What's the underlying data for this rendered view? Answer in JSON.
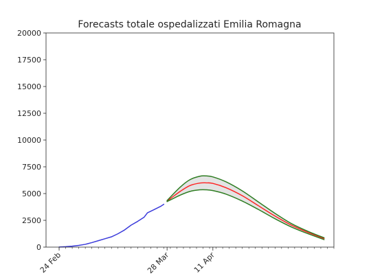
{
  "chart_data": {
    "type": "line",
    "title": "Forecasts totale ospedalizzati Emilia Romagna",
    "xlabel": "",
    "ylabel": "",
    "x_start": "2020-02-20",
    "x_end": "2020-05-18",
    "ylim": [
      0,
      20000
    ],
    "yticks": [
      0,
      2500,
      5000,
      7500,
      10000,
      12500,
      15000,
      17500,
      20000
    ],
    "xticks": [
      {
        "date": "2020-02-24",
        "label": "24 Feb"
      },
      {
        "date": "2020-03-28",
        "label": "28 Mar"
      },
      {
        "date": "2020-04-11",
        "label": "11 Apr"
      }
    ],
    "minor_tick_days": 2,
    "grid": false,
    "series": [
      {
        "role": "observed",
        "color": "#3b3bdb",
        "points": [
          [
            "2020-02-24",
            10
          ],
          [
            "2020-02-26",
            40
          ],
          [
            "2020-02-28",
            90
          ],
          [
            "2020-03-01",
            160
          ],
          [
            "2020-03-03",
            260
          ],
          [
            "2020-03-05",
            420
          ],
          [
            "2020-03-07",
            600
          ],
          [
            "2020-03-09",
            780
          ],
          [
            "2020-03-11",
            960
          ],
          [
            "2020-03-13",
            1250
          ],
          [
            "2020-03-15",
            1600
          ],
          [
            "2020-03-17",
            2050
          ],
          [
            "2020-03-19",
            2400
          ],
          [
            "2020-03-21",
            2800
          ],
          [
            "2020-03-22",
            3200
          ],
          [
            "2020-03-24",
            3500
          ],
          [
            "2020-03-26",
            3800
          ],
          [
            "2020-03-27",
            4000
          ]
        ]
      },
      {
        "role": "forecast",
        "color": "#ff2020",
        "points": [
          [
            "2020-03-28",
            4300
          ],
          [
            "2020-04-01",
            5200
          ],
          [
            "2020-04-04",
            5750
          ],
          [
            "2020-04-07",
            5980
          ],
          [
            "2020-04-09",
            6000
          ],
          [
            "2020-04-11",
            5950
          ],
          [
            "2020-04-15",
            5550
          ],
          [
            "2020-04-20",
            4800
          ],
          [
            "2020-04-25",
            3850
          ],
          [
            "2020-04-30",
            2900
          ],
          [
            "2020-05-05",
            2050
          ],
          [
            "2020-05-10",
            1380
          ],
          [
            "2020-05-15",
            800
          ]
        ]
      },
      {
        "role": "forecast-upper",
        "color": "#2e7d22",
        "points": [
          [
            "2020-03-28",
            4350
          ],
          [
            "2020-04-01",
            5600
          ],
          [
            "2020-04-04",
            6300
          ],
          [
            "2020-04-07",
            6620
          ],
          [
            "2020-04-09",
            6650
          ],
          [
            "2020-04-11",
            6560
          ],
          [
            "2020-04-15",
            6100
          ],
          [
            "2020-04-20",
            5250
          ],
          [
            "2020-04-25",
            4200
          ],
          [
            "2020-04-30",
            3150
          ],
          [
            "2020-05-05",
            2200
          ],
          [
            "2020-05-10",
            1480
          ],
          [
            "2020-05-15",
            870
          ]
        ]
      },
      {
        "role": "forecast-lower",
        "color": "#2e7d22",
        "points": [
          [
            "2020-03-28",
            4250
          ],
          [
            "2020-04-01",
            4850
          ],
          [
            "2020-04-04",
            5200
          ],
          [
            "2020-04-07",
            5350
          ],
          [
            "2020-04-09",
            5350
          ],
          [
            "2020-04-11",
            5280
          ],
          [
            "2020-04-15",
            4950
          ],
          [
            "2020-04-20",
            4300
          ],
          [
            "2020-04-25",
            3500
          ],
          [
            "2020-04-30",
            2650
          ],
          [
            "2020-05-05",
            1880
          ],
          [
            "2020-05-10",
            1260
          ],
          [
            "2020-05-15",
            700
          ]
        ]
      }
    ],
    "band_fill": "#d9d9d9"
  }
}
